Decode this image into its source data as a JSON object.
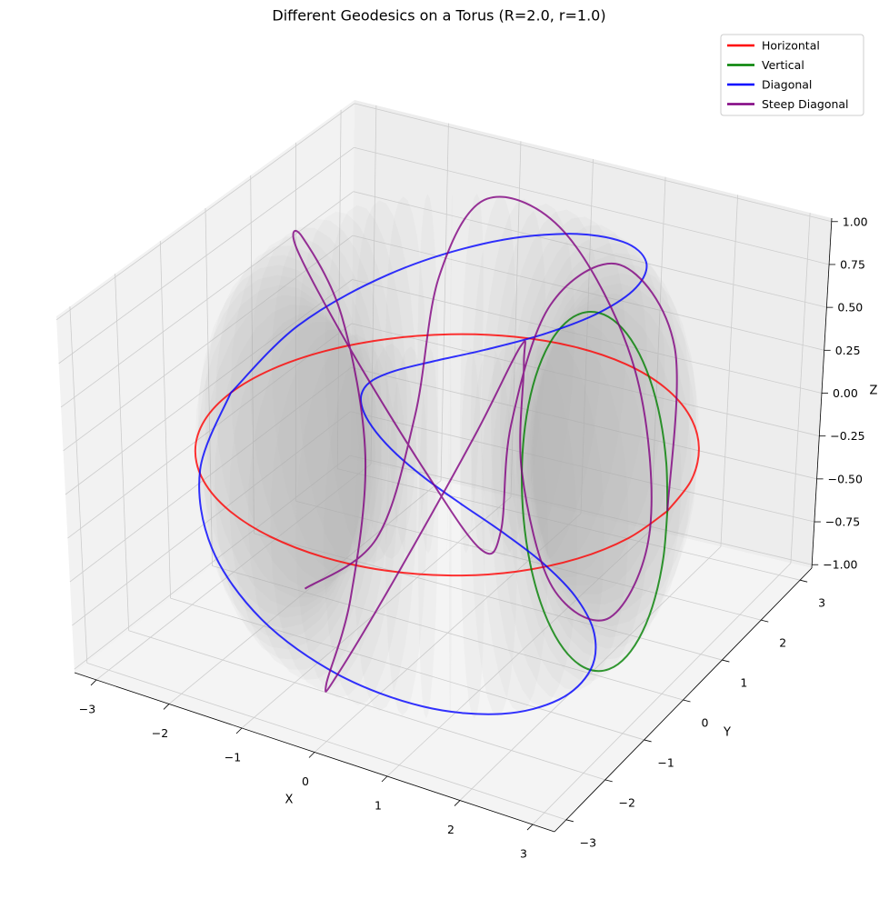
{
  "chart_data": {
    "type": "line3d",
    "title": "Different Geodesics on a Torus (R=2.0, r=1.0)",
    "xlabel": "X",
    "ylabel": "Y",
    "zlabel": "Z",
    "xlim": [
      -3.3,
      3.3
    ],
    "ylim": [
      -3.3,
      3.3
    ],
    "zlim": [
      -1.02,
      1.02
    ],
    "xticks": [
      {
        "value": -3,
        "label": "−3"
      },
      {
        "value": -2,
        "label": "−2"
      },
      {
        "value": -1,
        "label": "−1"
      },
      0,
      1,
      2,
      3
    ],
    "yticks": [
      {
        "value": -3,
        "label": "−3"
      },
      {
        "value": -2,
        "label": "−2"
      },
      {
        "value": -1,
        "label": "−1"
      },
      0,
      1,
      2,
      3
    ],
    "zticks": [
      {
        "value": -1,
        "label": "−1.00"
      },
      {
        "value": -0.75,
        "label": "−0.75"
      },
      {
        "value": -0.5,
        "label": "−0.50"
      },
      {
        "value": -0.25,
        "label": "−0.25"
      },
      {
        "value": 0,
        "label": "0.00"
      },
      0.25,
      {
        "value": 0.5,
        "label": "0.50"
      },
      0.75,
      {
        "value": 1,
        "label": "1.00"
      }
    ],
    "grid": true,
    "legend": "upper right",
    "surface": {
      "R": 2.0,
      "r": 1.0,
      "color": "#b4b4b4"
    },
    "series": [
      {
        "name": "Horizontal",
        "color": "#ff0000",
        "x": [
          3,
          2.898,
          2.598,
          2.121,
          1.5,
          0.776,
          0,
          -0.776,
          -1.5,
          -2.121,
          -2.598,
          -2.898,
          -3,
          -2.898,
          -2.598,
          -2.121,
          -1.5,
          -0.776,
          0,
          0.776,
          1.5,
          2.121,
          2.598,
          2.898,
          3
        ],
        "y": [
          0,
          0.776,
          1.5,
          2.121,
          2.598,
          2.898,
          3,
          2.898,
          2.598,
          2.121,
          1.5,
          0.776,
          0,
          -0.776,
          -1.5,
          -2.121,
          -2.598,
          -2.898,
          -3,
          -2.898,
          -2.598,
          -2.121,
          -1.5,
          -0.776,
          0
        ],
        "z": [
          0,
          0,
          0,
          0,
          0,
          0,
          0,
          0,
          0,
          0,
          0,
          0,
          0,
          0,
          0,
          0,
          0,
          0,
          0,
          0,
          0,
          0,
          0,
          0,
          0
        ]
      },
      {
        "name": "Vertical",
        "color": "#008000",
        "x": [
          3,
          2.966,
          2.866,
          2.707,
          2.5,
          2.259,
          2,
          1.741,
          1.5,
          1.293,
          1.134,
          1.034,
          1,
          1.034,
          1.134,
          1.293,
          1.5,
          1.741,
          2,
          2.259,
          2.5,
          2.707,
          2.866,
          2.966,
          3
        ],
        "y": [
          0,
          0,
          0,
          0,
          0,
          0,
          0,
          0,
          0,
          0,
          0,
          0,
          0,
          0,
          0,
          0,
          0,
          0,
          0,
          0,
          0,
          0,
          0,
          0,
          0
        ],
        "z": [
          0,
          0.259,
          0.5,
          0.707,
          0.866,
          0.966,
          1,
          0.966,
          0.866,
          0.707,
          0.5,
          0.259,
          0,
          -0.259,
          -0.5,
          -0.707,
          -0.866,
          -0.966,
          -1,
          -0.966,
          -0.866,
          -0.707,
          -0.5,
          -0.259,
          0
        ]
      },
      {
        "name": "Diagonal",
        "color": "#0000ff",
        "x": [
          -3,
          -2.754,
          -2.067,
          -1.084,
          0,
          0.979,
          1.685,
          2.028,
          2,
          1.668,
          1.143,
          0.553,
          0,
          -0.448,
          -0.761,
          -0.942,
          -1,
          -0.942,
          -0.761,
          -0.448,
          0,
          0.553,
          1.143,
          1.668,
          2,
          2.028,
          1.685,
          0.979,
          0,
          -1.084,
          -2.067,
          -2.754,
          -3
        ],
        "y": [
          0,
          -1.142,
          -2.067,
          -2.616,
          -2.707,
          -2.362,
          -1.685,
          -0.841,
          0,
          0.691,
          1.143,
          1.334,
          1.293,
          1.08,
          0.761,
          0.39,
          0,
          -0.39,
          -0.761,
          -1.08,
          -1.293,
          -1.334,
          -1.143,
          -0.691,
          0,
          0.841,
          1.685,
          2.362,
          2.707,
          2.616,
          2.067,
          1.142,
          0
        ],
        "z": [
          0,
          -0.195,
          -0.383,
          -0.556,
          -0.707,
          -0.831,
          -0.924,
          -0.981,
          -1,
          -0.981,
          -0.924,
          -0.831,
          -0.707,
          -0.556,
          -0.383,
          -0.195,
          0,
          0.195,
          0.383,
          0.556,
          0.707,
          0.831,
          0.924,
          0.981,
          1,
          0.981,
          0.924,
          0.831,
          0.707,
          0.556,
          0.383,
          0.195,
          0
        ]
      },
      {
        "name": "Steep Diagonal",
        "color": "#800080",
        "x": [
          3,
          2.574,
          1.618,
          0.76,
          0.309,
          0,
          -0.618,
          -1.592,
          -2.427,
          -2.574,
          -2,
          -1.23,
          -0.809,
          -0.76,
          -0.618,
          0,
          0.927,
          1.592,
          1.618,
          1.23,
          1,
          1.23,
          1.618,
          1.592,
          0.927,
          0,
          -0.618,
          -0.76,
          -0.809,
          -1.23,
          -2
        ],
        "y": [
          0,
          0.836,
          1.176,
          1.046,
          0.951,
          1.293,
          1.902,
          2.19,
          1.764,
          0.836,
          0,
          -0.4,
          -0.588,
          -1.046,
          -1.902,
          -2.707,
          -2.853,
          -2.19,
          -1.176,
          -0.4,
          0,
          0.4,
          1.176,
          2.19,
          2.853,
          2.707,
          1.902,
          1.046,
          0.588,
          0.4,
          0
        ],
        "z": [
          0,
          0.707,
          1,
          0.707,
          0,
          -0.707,
          -1,
          -0.707,
          0,
          0.707,
          1,
          0.707,
          0,
          -0.707,
          -1,
          -0.707,
          0,
          0.707,
          1,
          0.707,
          0,
          -0.707,
          -1,
          -0.707,
          0,
          0.707,
          1,
          0.707,
          0,
          -0.707,
          -1
        ]
      }
    ]
  }
}
